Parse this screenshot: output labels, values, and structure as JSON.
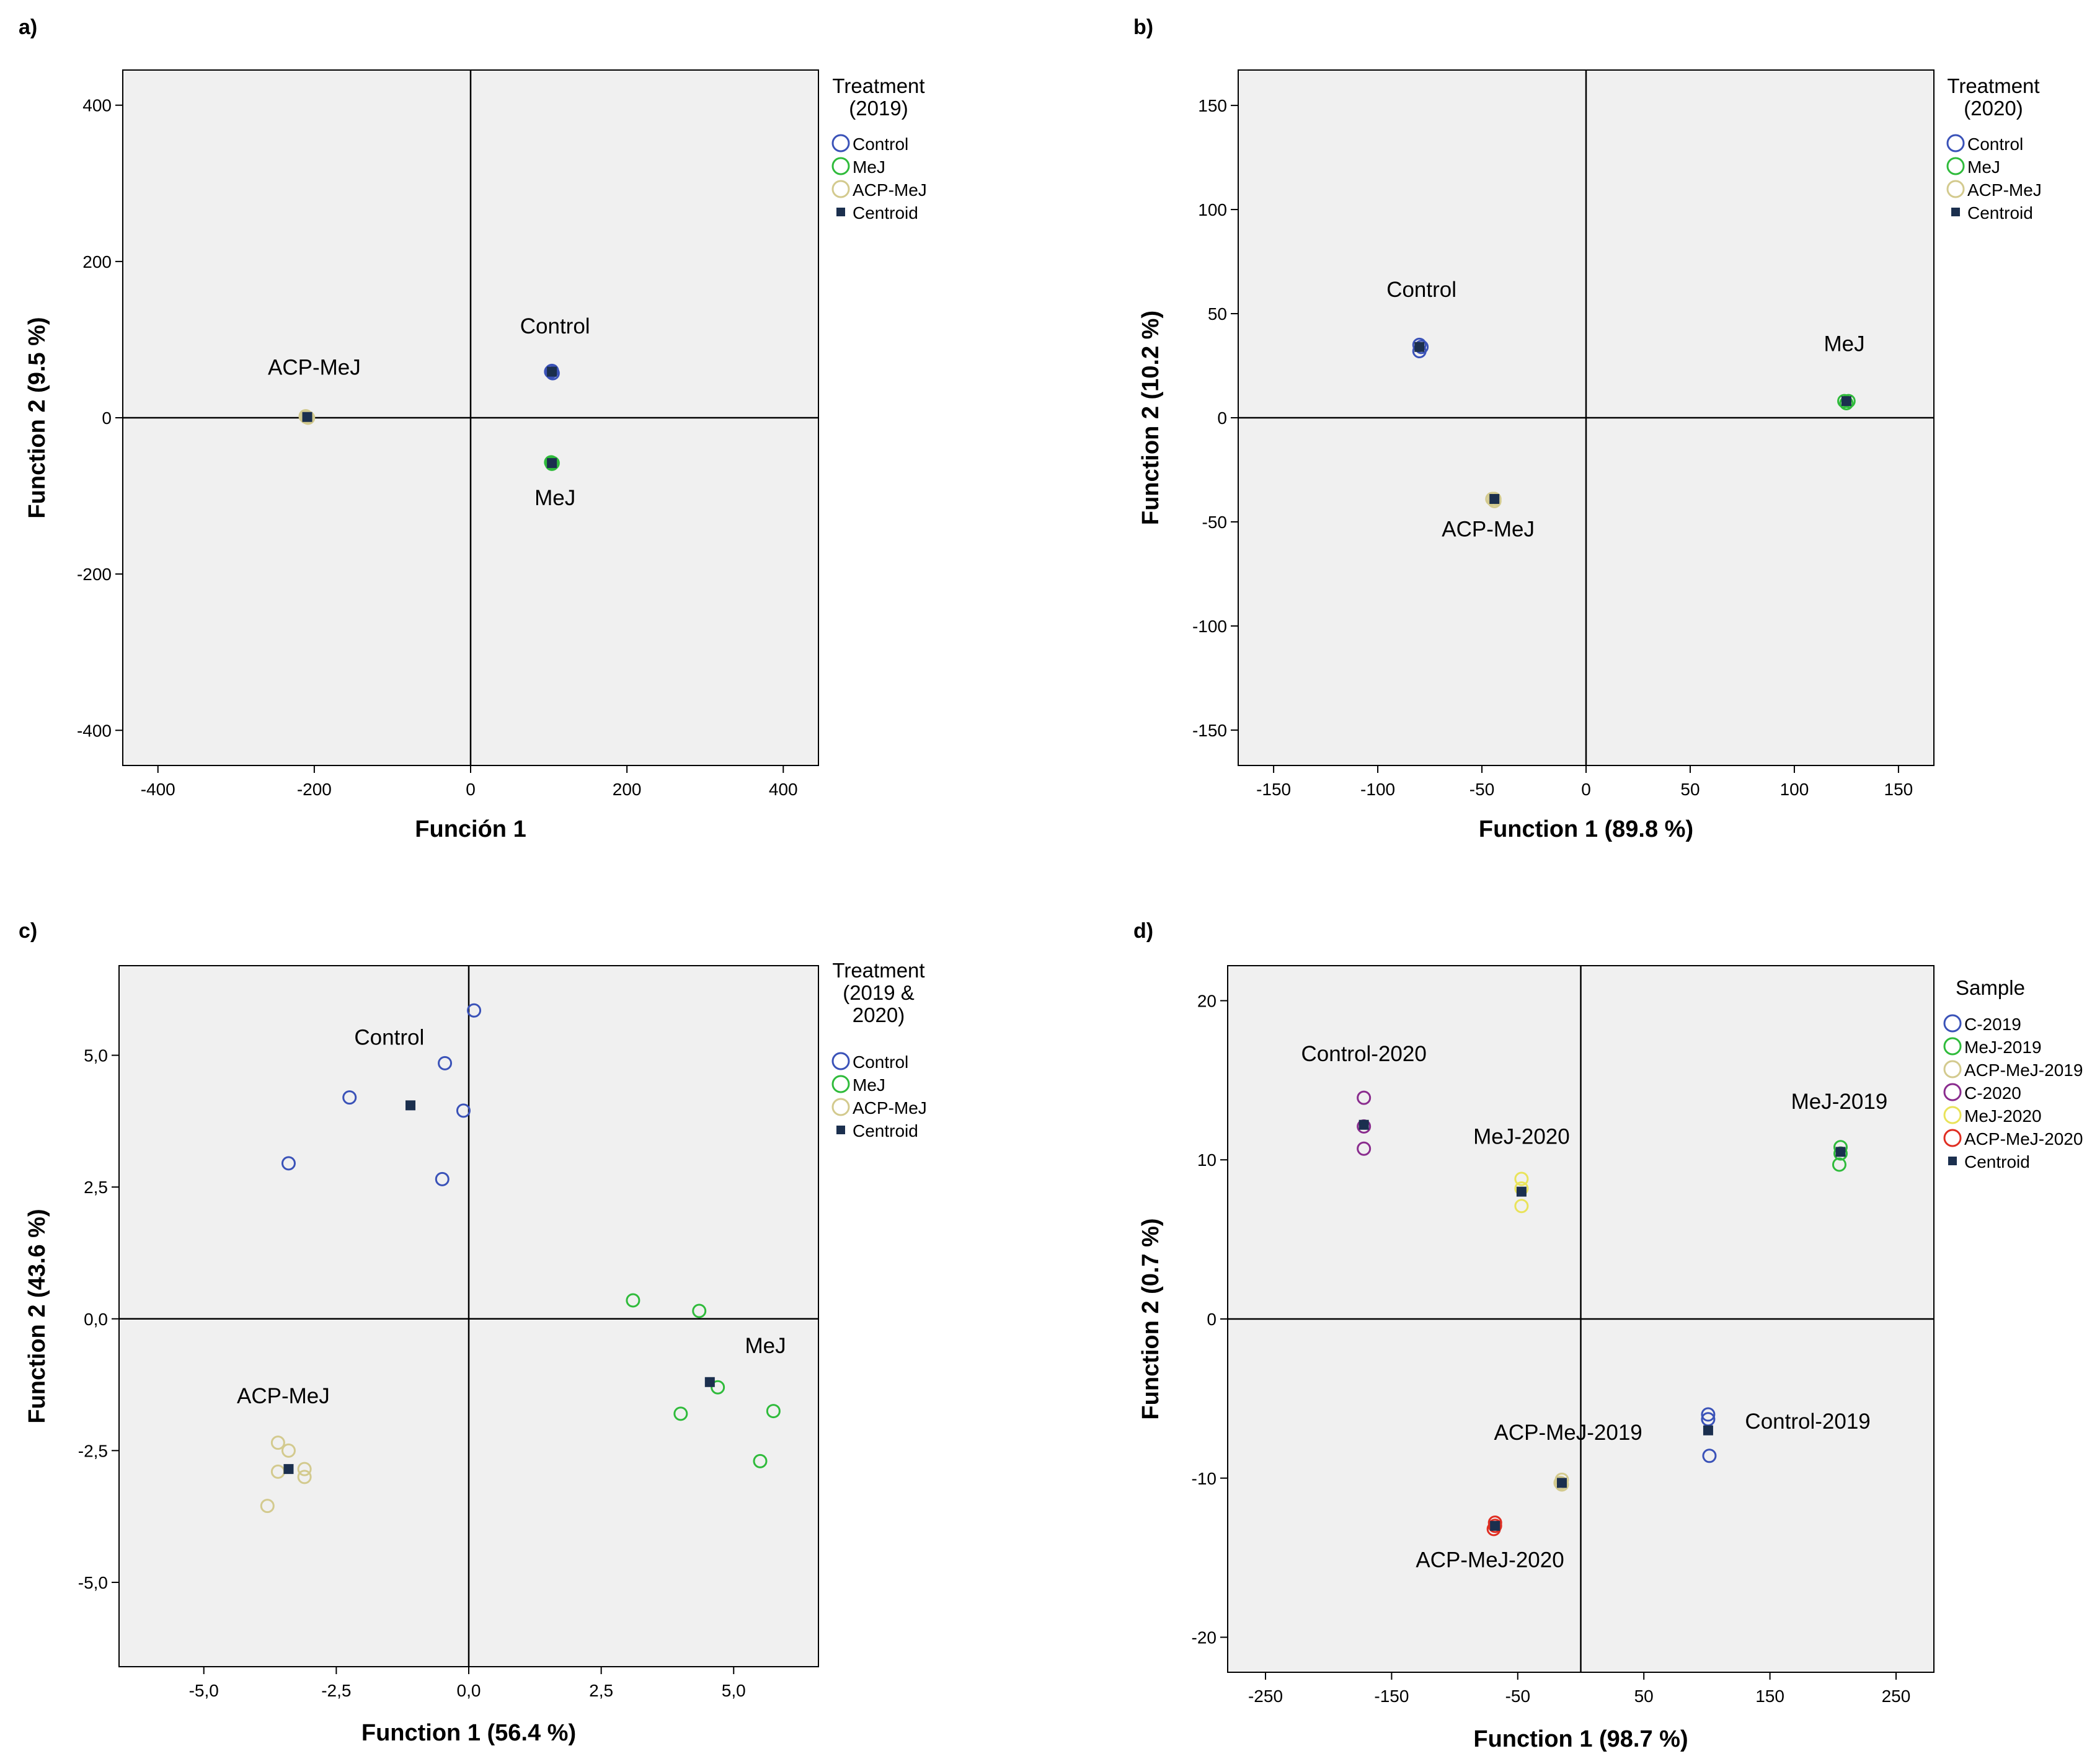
{
  "figure": {
    "panels_note": "Four discriminant analysis scatter plots",
    "colors": {
      "control": "#3a52b8",
      "mej": "#2fbb3b",
      "acp": "#d3ca8e",
      "c2020": "#8a2c8e",
      "mej2020": "#e9e35a",
      "acp2020": "#e02e22",
      "centroid": "#1b2f4e"
    }
  },
  "chart_data": [
    {
      "type": "scatter",
      "panel": "a)",
      "xlabel": "Función 1",
      "ylabel": "Function 2 (9.5 %)",
      "xlim": [
        -445,
        445
      ],
      "ylim": [
        -445,
        445
      ],
      "xticks": [
        -400,
        -200,
        0,
        200,
        400
      ],
      "xtick_labels": [
        "-400",
        "-200",
        "0",
        "200",
        "400"
      ],
      "yticks": [
        400,
        200,
        0,
        -200,
        -400
      ],
      "ytick_labels": [
        "400",
        "200",
        "0",
        "-200",
        "-400"
      ],
      "legend": {
        "title_lines": [
          "Treatment",
          "(2019)"
        ],
        "entries": [
          {
            "label": "Control",
            "color": "#3a52b8",
            "marker": "circle"
          },
          {
            "label": "MeJ",
            "color": "#2fbb3b",
            "marker": "circle"
          },
          {
            "label": "ACP-MeJ",
            "color": "#d3ca8e",
            "marker": "circle"
          },
          {
            "label": "Centroid",
            "color": "#1b2f4e",
            "marker": "square"
          }
        ]
      },
      "series": [
        {
          "name": "Control",
          "color": "#3a52b8",
          "points": [
            [
              104,
              60
            ],
            [
              105,
              57
            ],
            [
              103,
              59
            ]
          ]
        },
        {
          "name": "MeJ",
          "color": "#2fbb3b",
          "points": [
            [
              103,
              -57
            ],
            [
              104,
              -59
            ],
            [
              105,
              -58
            ]
          ]
        },
        {
          "name": "ACP-MeJ",
          "color": "#d3ca8e",
          "points": [
            [
              -210,
              1
            ],
            [
              -208,
              0
            ],
            [
              -211,
              2
            ]
          ]
        }
      ],
      "centroids": [
        [
          104,
          59
        ],
        [
          104,
          -58
        ],
        [
          -209,
          1
        ]
      ],
      "annotations": [
        {
          "text": "Control",
          "x": 108,
          "y": 108
        },
        {
          "text": "ACP-MeJ",
          "x": -200,
          "y": 55
        },
        {
          "text": "MeJ",
          "x": 108,
          "y": -112
        }
      ]
    },
    {
      "type": "scatter",
      "panel": "b)",
      "xlabel": "Function 1 (89.8 %)",
      "ylabel": "Function 2 (10.2 %)",
      "xlim": [
        -167,
        167
      ],
      "ylim": [
        -167,
        167
      ],
      "xticks": [
        -150,
        -100,
        -50,
        0,
        50,
        100,
        150
      ],
      "xtick_labels": [
        "-150",
        "-100",
        "-50",
        "0",
        "50",
        "100",
        "150"
      ],
      "yticks": [
        150,
        100,
        50,
        0,
        -50,
        -100,
        -150
      ],
      "ytick_labels": [
        "150",
        "100",
        "50",
        "0",
        "-50",
        "-100",
        "-150"
      ],
      "legend": {
        "title_lines": [
          "Treatment",
          "(2020)"
        ],
        "entries": [
          {
            "label": "Control",
            "color": "#3a52b8",
            "marker": "circle"
          },
          {
            "label": "MeJ",
            "color": "#2fbb3b",
            "marker": "circle"
          },
          {
            "label": "ACP-MeJ",
            "color": "#d3ca8e",
            "marker": "circle"
          },
          {
            "label": "Centroid",
            "color": "#1b2f4e",
            "marker": "square"
          }
        ]
      },
      "series": [
        {
          "name": "Control",
          "color": "#3a52b8",
          "points": [
            [
              -80,
              35
            ],
            [
              -80,
              32
            ],
            [
              -79,
              34
            ]
          ]
        },
        {
          "name": "MeJ",
          "color": "#2fbb3b",
          "points": [
            [
              124,
              8
            ],
            [
              125,
              7
            ],
            [
              126,
              8
            ]
          ]
        },
        {
          "name": "ACP-MeJ",
          "color": "#d3ca8e",
          "points": [
            [
              -45,
              -39
            ],
            [
              -44,
              -40
            ],
            [
              -44,
              -39
            ]
          ]
        }
      ],
      "centroids": [
        [
          -80,
          34
        ],
        [
          125,
          8
        ],
        [
          -44,
          -39
        ]
      ],
      "annotations": [
        {
          "text": "Control",
          "x": -79,
          "y": 58
        },
        {
          "text": "MeJ",
          "x": 124,
          "y": 32
        },
        {
          "text": "ACP-MeJ",
          "x": -47,
          "y": -57
        }
      ]
    },
    {
      "type": "scatter",
      "panel": "c)",
      "xlabel": "Function 1 (56.4 %)",
      "ylabel": "Function 2 (43.6 %)",
      "xlim": [
        -6.6,
        6.6
      ],
      "ylim": [
        -6.6,
        6.7
      ],
      "xticks": [
        -5.0,
        -2.5,
        0.0,
        2.5,
        5.0
      ],
      "xtick_labels": [
        "-5,0",
        "-2,5",
        "0,0",
        "2,5",
        "5,0"
      ],
      "yticks": [
        5.0,
        2.5,
        0.0,
        -2.5,
        -5.0
      ],
      "ytick_labels": [
        "5,0",
        "2,5",
        "0,0",
        "-2,5",
        "-5,0"
      ],
      "legend": {
        "title_lines": [
          "Treatment",
          "(2019 &",
          "2020)"
        ],
        "entries": [
          {
            "label": "Control",
            "color": "#3a52b8",
            "marker": "circle"
          },
          {
            "label": "MeJ",
            "color": "#2fbb3b",
            "marker": "circle"
          },
          {
            "label": "ACP-MeJ",
            "color": "#d3ca8e",
            "marker": "circle"
          },
          {
            "label": "Centroid",
            "color": "#1b2f4e",
            "marker": "square"
          }
        ]
      },
      "series": [
        {
          "name": "Control",
          "color": "#3a52b8",
          "points": [
            [
              0.1,
              5.85
            ],
            [
              -0.45,
              4.85
            ],
            [
              -2.25,
              4.2
            ],
            [
              -0.1,
              3.95
            ],
            [
              -3.4,
              2.95
            ],
            [
              -0.5,
              2.65
            ]
          ]
        },
        {
          "name": "MeJ",
          "color": "#2fbb3b",
          "points": [
            [
              3.1,
              0.35
            ],
            [
              4.35,
              0.15
            ],
            [
              4.7,
              -1.3
            ],
            [
              4.0,
              -1.8
            ],
            [
              5.75,
              -1.75
            ],
            [
              5.5,
              -2.7
            ]
          ]
        },
        {
          "name": "ACP-MeJ",
          "color": "#d3ca8e",
          "points": [
            [
              -3.6,
              -2.35
            ],
            [
              -3.4,
              -2.5
            ],
            [
              -3.1,
              -2.85
            ],
            [
              -3.6,
              -2.9
            ],
            [
              -3.1,
              -3.0
            ],
            [
              -3.8,
              -3.55
            ]
          ]
        }
      ],
      "centroids": [
        [
          -1.1,
          4.05
        ],
        [
          4.55,
          -1.2
        ],
        [
          -3.4,
          -2.85
        ]
      ],
      "annotations": [
        {
          "text": "Control",
          "x": -1.5,
          "y": 5.2
        },
        {
          "text": "MeJ",
          "x": 5.6,
          "y": -0.65
        },
        {
          "text": "ACP-MeJ",
          "x": -3.5,
          "y": -1.6
        }
      ]
    },
    {
      "type": "scatter",
      "panel": "d)",
      "xlabel": "Function 1 (98.7 %)",
      "ylabel": "Function 2 (0.7 %)",
      "xlim": [
        -280,
        280
      ],
      "ylim": [
        -22.2,
        22.2
      ],
      "xticks": [
        -250,
        -150,
        -50,
        50,
        150,
        250
      ],
      "xtick_labels": [
        "-250",
        "-150",
        "-50",
        "50",
        "150",
        "250"
      ],
      "yticks": [
        20,
        10,
        0,
        -10,
        -20
      ],
      "ytick_labels": [
        "20",
        "10",
        "0",
        "-10",
        "-20"
      ],
      "legend": {
        "title_lines": [
          "Sample"
        ],
        "entries": [
          {
            "label": "C-2019",
            "color": "#3a52b8",
            "marker": "circle"
          },
          {
            "label": "MeJ-2019",
            "color": "#2fbb3b",
            "marker": "circle"
          },
          {
            "label": "ACP-MeJ-2019",
            "color": "#d3ca8e",
            "marker": "circle"
          },
          {
            "label": "C-2020",
            "color": "#8a2c8e",
            "marker": "circle"
          },
          {
            "label": "MeJ-2020",
            "color": "#e9e35a",
            "marker": "circle"
          },
          {
            "label": "ACP-MeJ-2020",
            "color": "#e02e22",
            "marker": "circle"
          },
          {
            "label": "Centroid",
            "color": "#1b2f4e",
            "marker": "square"
          }
        ]
      },
      "series": [
        {
          "name": "C-2019",
          "color": "#3a52b8",
          "points": [
            [
              101,
              -6.0
            ],
            [
              101,
              -6.3
            ],
            [
              102,
              -8.6
            ]
          ]
        },
        {
          "name": "MeJ-2019",
          "color": "#2fbb3b",
          "points": [
            [
              206,
              10.8
            ],
            [
              206,
              10.4
            ],
            [
              205,
              9.7
            ]
          ]
        },
        {
          "name": "ACP-MeJ-2019",
          "color": "#d3ca8e",
          "points": [
            [
              -15,
              -10.1
            ],
            [
              -15,
              -10.4
            ],
            [
              -16,
              -10.3
            ]
          ]
        },
        {
          "name": "C-2020",
          "color": "#8a2c8e",
          "points": [
            [
              -172,
              13.9
            ],
            [
              -172,
              12.1
            ],
            [
              -172,
              10.7
            ]
          ]
        },
        {
          "name": "MeJ-2020",
          "color": "#e9e35a",
          "points": [
            [
              -47,
              8.8
            ],
            [
              -47,
              8.2
            ],
            [
              -47,
              7.1
            ]
          ]
        },
        {
          "name": "ACP-MeJ-2020",
          "color": "#e02e22",
          "points": [
            [
              -68,
              -12.8
            ],
            [
              -69,
              -13.2
            ],
            [
              -68,
              -13.0
            ]
          ]
        }
      ],
      "centroids": [
        [
          101,
          -7.0
        ],
        [
          206,
          10.5
        ],
        [
          -15,
          -10.3
        ],
        [
          -172,
          12.2
        ],
        [
          -47,
          8.0
        ],
        [
          -68,
          -13.0
        ]
      ],
      "annotations": [
        {
          "text": "Control-2020",
          "x": -172,
          "y": 16.2
        },
        {
          "text": "MeJ-2020",
          "x": -47,
          "y": 11.0
        },
        {
          "text": "MeJ-2019",
          "x": 205,
          "y": 13.2
        },
        {
          "text": "Control-2019",
          "x": 180,
          "y": -6.9
        },
        {
          "text": "ACP-MeJ-2019",
          "x": -10,
          "y": -7.6
        },
        {
          "text": "ACP-MeJ-2020",
          "x": -72,
          "y": -15.6
        }
      ]
    }
  ]
}
